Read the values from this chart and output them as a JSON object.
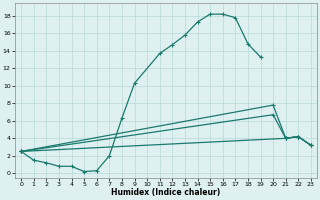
{
  "xlabel": "Humidex (Indice chaleur)",
  "line_main": {
    "x": [
      0,
      1,
      2,
      3,
      4,
      5,
      6,
      7,
      8,
      9,
      11,
      12,
      13,
      14,
      15,
      16,
      17,
      18,
      19
    ],
    "y": [
      2.5,
      1.5,
      1.2,
      0.8,
      0.8,
      0.2,
      0.3,
      2.0,
      6.3,
      10.3,
      13.7,
      14.7,
      15.8,
      17.3,
      18.2,
      18.2,
      17.8,
      14.8,
      13.3
    ]
  },
  "line_diag_upper": {
    "x": [
      0,
      20,
      21,
      22,
      23
    ],
    "y": [
      2.5,
      7.8,
      4.0,
      4.2,
      3.2
    ]
  },
  "line_diag_mid": {
    "x": [
      0,
      20,
      21,
      22,
      23
    ],
    "y": [
      2.5,
      6.7,
      4.0,
      4.2,
      3.2
    ]
  },
  "line_diag_lower": {
    "x": [
      0,
      21,
      22,
      23
    ],
    "y": [
      2.5,
      4.0,
      4.2,
      3.2
    ]
  },
  "bg_color": "#dff0f0",
  "grid_color": "#b8d8d8",
  "line_color": "#1a7a6e",
  "ylim": [
    -0.5,
    19.5
  ],
  "xlim": [
    -0.5,
    23.5
  ],
  "yticks": [
    0,
    2,
    4,
    6,
    8,
    10,
    12,
    14,
    16,
    18
  ],
  "xticks": [
    0,
    1,
    2,
    3,
    4,
    5,
    6,
    7,
    8,
    9,
    10,
    11,
    12,
    13,
    14,
    15,
    16,
    17,
    18,
    19,
    20,
    21,
    22,
    23
  ]
}
